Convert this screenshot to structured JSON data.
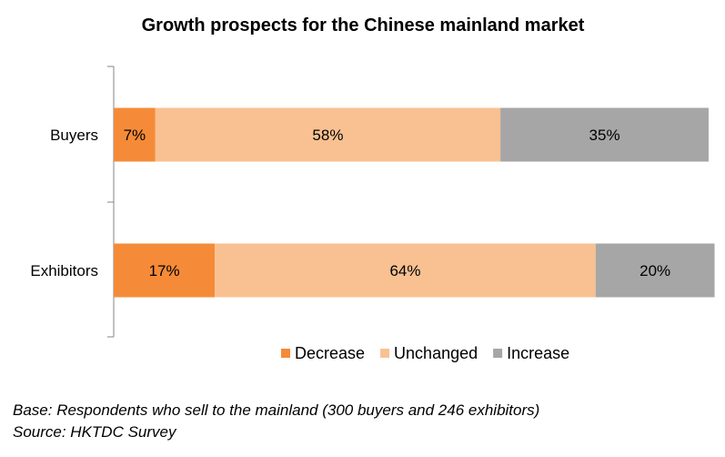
{
  "chart_data": {
    "type": "bar",
    "orientation": "horizontal",
    "stacked": true,
    "title": "Growth prospects for the Chinese mainland market",
    "categories": [
      "Buyers",
      "Exhibitors"
    ],
    "series": [
      {
        "name": "Decrease",
        "values": [
          7,
          17
        ],
        "labels": [
          "7%",
          "17%"
        ],
        "color": "#f58b38"
      },
      {
        "name": "Unchanged",
        "values": [
          58,
          64
        ],
        "labels": [
          "58%",
          "64%"
        ],
        "color": "#f9c191"
      },
      {
        "name": "Increase",
        "values": [
          35,
          20
        ],
        "labels": [
          "35%",
          "20%"
        ],
        "color": "#a6a6a6"
      }
    ],
    "xlim": [
      0,
      100
    ],
    "legend": "bottom",
    "grid": false
  },
  "notes": {
    "base": "Base: Respondents who sell to the mainland (300 buyers and 246 exhibitors)",
    "source": "Source: HKTDC Survey"
  }
}
